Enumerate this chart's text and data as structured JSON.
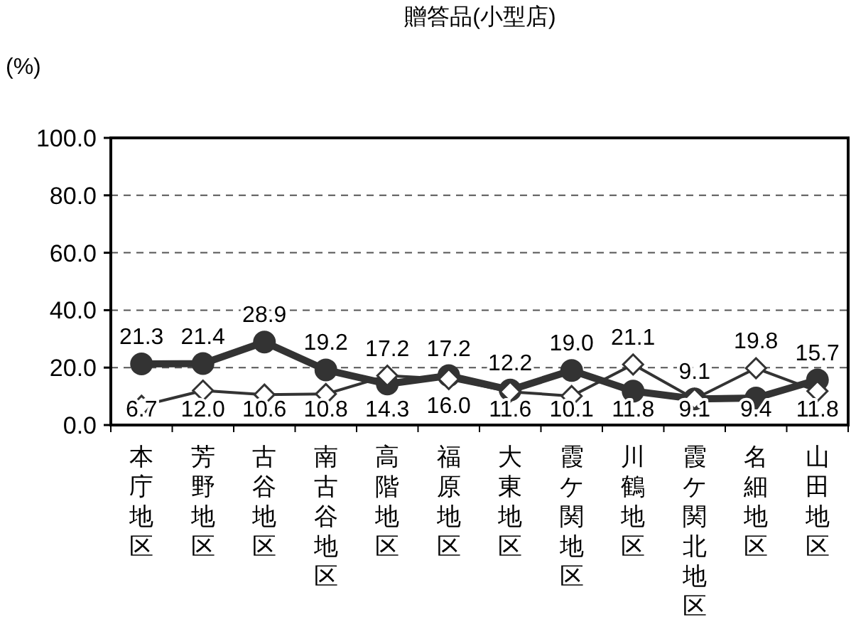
{
  "chart_data": {
    "type": "line",
    "title": "贈答品(小型店)",
    "ylabel": "(%)",
    "categories": [
      "本庁地区",
      "芳野地区",
      "古谷地区",
      "南古谷地区",
      "高階地区",
      "福原地区",
      "大東地区",
      "霞ケ関地区",
      "川鶴地区",
      "霞ケ関北地区",
      "名細地区",
      "山田地区"
    ],
    "series": [
      {
        "color": "#333333",
        "marker": "circle",
        "values": [
          21.3,
          21.4,
          28.9,
          19.2,
          14.3,
          17.2,
          12.2,
          19.0,
          11.8,
          9.1,
          9.4,
          15.7
        ],
        "value_labels": [
          "21.3",
          "21.4",
          "28.9",
          "19.2",
          "14.3",
          "17.2",
          "12.2",
          "19.0",
          "11.8",
          "9.1",
          "9.4",
          "15.7"
        ]
      },
      {
        "color": "#333333",
        "marker": "diamond",
        "values": [
          6.7,
          12.0,
          10.6,
          10.8,
          17.2,
          16.0,
          11.6,
          10.1,
          21.1,
          9.1,
          19.8,
          11.8
        ],
        "value_labels": [
          "6.7",
          "12.0",
          "10.6",
          "10.8",
          "17.2",
          "16.0",
          "11.6",
          "10.1",
          "21.1",
          "9.1",
          "19.8",
          "11.8"
        ]
      }
    ],
    "ylim": [
      0,
      100
    ],
    "yticks": [
      {
        "value": 0,
        "label": "0.0"
      },
      {
        "value": 20,
        "label": "20.0"
      },
      {
        "value": 40,
        "label": "40.0"
      },
      {
        "value": 60,
        "label": "60.0"
      },
      {
        "value": 80,
        "label": "80.0"
      },
      {
        "value": 100,
        "label": "100.0"
      }
    ],
    "grid": "y"
  }
}
